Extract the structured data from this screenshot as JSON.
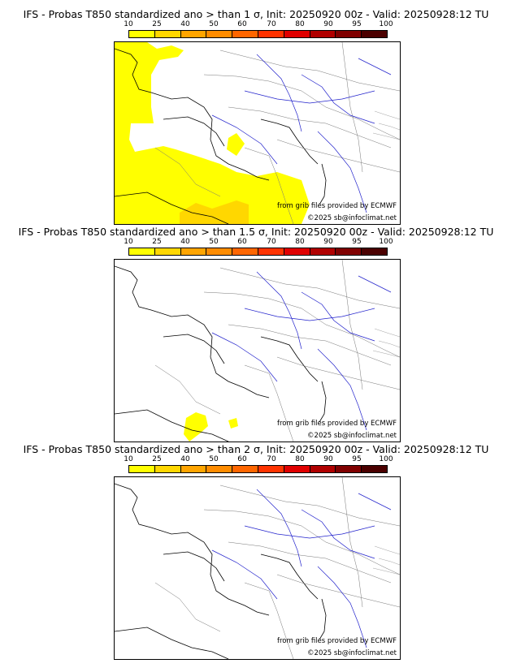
{
  "legend": {
    "labels": [
      "10",
      "25",
      "40",
      "50",
      "60",
      "70",
      "80",
      "90",
      "95",
      "100"
    ],
    "colors": [
      "#ffff00",
      "#ffd700",
      "#ffa500",
      "#ff8c00",
      "#ff6600",
      "#ff3300",
      "#e00000",
      "#b00000",
      "#800000",
      "#4b0000"
    ]
  },
  "panels": [
    {
      "title": "IFS - Probas T850  standardized ano > than 1 σ, Init: 20250920 00z - Valid: 20250928:12 TU",
      "credit": "from grib files provided by ECMWF",
      "copyright": "©2025 sb@infoclimat.net"
    },
    {
      "title": "IFS - Probas T850  standardized ano > than 1.5 σ, Init: 20250920 00z - Valid: 20250928:12 TU",
      "credit": "from grib files provided by ECMWF",
      "copyright": "©2025 sb@infoclimat.net"
    },
    {
      "title": "IFS - Probas T850  standardized ano > than 2 σ, Init: 20250920 00z - Valid: 20250928:12 TU",
      "credit": "from grib files provided by ECMWF",
      "copyright": "©2025 sb@infoclimat.net"
    }
  ]
}
